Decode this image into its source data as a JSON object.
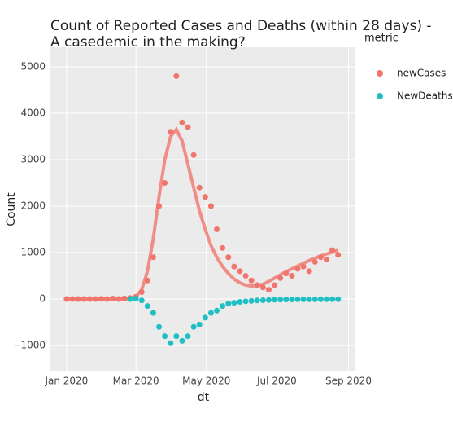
{
  "chart_data": {
    "type": "scatter",
    "title": "Count of Reported Cases and Deaths (within 28 days) -",
    "subtitle": "A casedemic in the making?",
    "x_label": "dt",
    "y_label": "Count",
    "legend_title": "metric",
    "xlim": [
      -14,
      250
    ],
    "ylim": [
      -1560,
      5420
    ],
    "xticks": [
      {
        "value": 0,
        "label": "Jan 2020"
      },
      {
        "value": 60,
        "label": "Mar 2020"
      },
      {
        "value": 121,
        "label": "May 2020"
      },
      {
        "value": 182,
        "label": "Jul 2020"
      },
      {
        "value": 244,
        "label": "Sep 2020"
      }
    ],
    "yticks": [
      {
        "value": -1000,
        "label": "−1000"
      },
      0,
      1000,
      2000,
      3000,
      4000,
      5000
    ],
    "grid": true,
    "legend": "right",
    "series": [
      {
        "name": "newCases",
        "color": "#f0766d",
        "x": [
          0,
          5,
          10,
          15,
          20,
          25,
          30,
          35,
          40,
          45,
          50,
          55,
          60,
          65,
          70,
          75,
          80,
          85,
          90,
          95,
          100,
          105,
          110,
          115,
          120,
          125,
          130,
          135,
          140,
          145,
          150,
          155,
          160,
          165,
          170,
          175,
          180,
          185,
          190,
          195,
          200,
          205,
          210,
          215,
          220,
          225,
          230,
          235
        ],
        "values": [
          0,
          0,
          0,
          0,
          0,
          0,
          5,
          0,
          10,
          0,
          15,
          20,
          50,
          150,
          400,
          900,
          2000,
          2500,
          3600,
          4800,
          3800,
          3700,
          3100,
          2400,
          2200,
          2000,
          1500,
          1100,
          900,
          700,
          600,
          500,
          400,
          300,
          250,
          200,
          300,
          450,
          550,
          500,
          650,
          700,
          600,
          800,
          900,
          850,
          1050,
          950
        ],
        "fit": [
          0,
          0,
          0,
          0,
          0,
          0,
          0,
          0,
          0,
          0,
          0,
          10,
          50,
          200,
          600,
          1300,
          2200,
          3000,
          3500,
          3650,
          3400,
          2900,
          2400,
          1900,
          1500,
          1150,
          900,
          700,
          550,
          430,
          350,
          300,
          280,
          290,
          320,
          380,
          450,
          520,
          590,
          650,
          710,
          770,
          830,
          880,
          930,
          970,
          1010,
          1050
        ]
      },
      {
        "name": "NewDeaths",
        "color": "#1fbfc4",
        "x": [
          55,
          60,
          65,
          70,
          75,
          80,
          85,
          90,
          95,
          100,
          105,
          110,
          115,
          120,
          125,
          130,
          135,
          140,
          145,
          150,
          155,
          160,
          165,
          170,
          175,
          180,
          185,
          190,
          195,
          200,
          205,
          210,
          215,
          220,
          225,
          230,
          235
        ],
        "values": [
          0,
          10,
          -30,
          -150,
          -300,
          -600,
          -800,
          -950,
          -800,
          -900,
          -800,
          -600,
          -550,
          -400,
          -300,
          -250,
          -150,
          -100,
          -80,
          -60,
          -50,
          -40,
          -30,
          -25,
          -20,
          -15,
          -12,
          -10,
          -8,
          -7,
          -6,
          -5,
          -5,
          -4,
          -4,
          -3,
          -3
        ]
      }
    ]
  }
}
